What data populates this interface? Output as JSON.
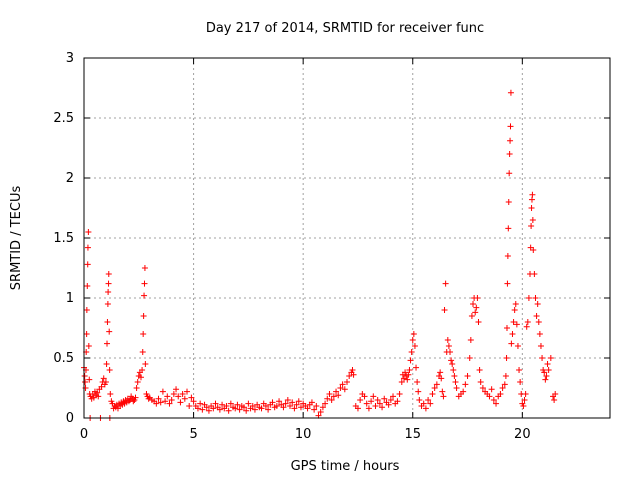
{
  "chart_data": {
    "type": "scatter",
    "title": "Day 217 of 2014, SRMTID for receiver func",
    "xlabel": "GPS time / hours",
    "ylabel": "SRMTID / TECUs",
    "xlim": [
      0,
      24
    ],
    "ylim": [
      0,
      3
    ],
    "xticks": [
      0,
      5,
      10,
      15,
      20
    ],
    "yticks": [
      0,
      0.5,
      1,
      1.5,
      2,
      2.5,
      3
    ],
    "xtick_labels": [
      "0",
      "5",
      "10",
      "15",
      "20"
    ],
    "ytick_labels": [
      "0",
      "0.5",
      "1",
      "1.5",
      "2",
      "2.5",
      "3"
    ],
    "grid": true,
    "marker": "+",
    "color": "#ff0000",
    "series": [
      {
        "name": "SRMTID",
        "points": [
          [
            0.0,
            0.42
          ],
          [
            0.03,
            0.35
          ],
          [
            0.05,
            0.3
          ],
          [
            0.07,
            0.25
          ],
          [
            0.09,
            0.4
          ],
          [
            0.1,
            0.55
          ],
          [
            0.12,
            0.7
          ],
          [
            0.13,
            0.9
          ],
          [
            0.15,
            1.1
          ],
          [
            0.17,
            1.28
          ],
          [
            0.18,
            1.42
          ],
          [
            0.2,
            1.55
          ],
          [
            0.22,
            0.6
          ],
          [
            0.24,
            0.32
          ],
          [
            0.26,
            0.2
          ],
          [
            0.28,
            0.0
          ],
          [
            0.3,
            0.18
          ],
          [
            0.35,
            0.16
          ],
          [
            0.4,
            0.2
          ],
          [
            0.45,
            0.17
          ],
          [
            0.5,
            0.22
          ],
          [
            0.55,
            0.19
          ],
          [
            0.6,
            0.21
          ],
          [
            0.65,
            0.18
          ],
          [
            0.7,
            0.24
          ],
          [
            0.75,
            0.0
          ],
          [
            0.8,
            0.26
          ],
          [
            0.85,
            0.3
          ],
          [
            0.9,
            0.33
          ],
          [
            0.95,
            0.28
          ],
          [
            1.0,
            0.3
          ],
          [
            1.03,
            0.45
          ],
          [
            1.05,
            0.62
          ],
          [
            1.07,
            0.8
          ],
          [
            1.09,
            0.95
          ],
          [
            1.1,
            1.05
          ],
          [
            1.12,
            1.12
          ],
          [
            1.13,
            1.2
          ],
          [
            1.15,
            0.72
          ],
          [
            1.17,
            0.4
          ],
          [
            1.18,
            0.0
          ],
          [
            1.2,
            0.2
          ],
          [
            1.25,
            0.14
          ],
          [
            1.3,
            0.12
          ],
          [
            1.35,
            0.08
          ],
          [
            1.4,
            0.1
          ],
          [
            1.45,
            0.09
          ],
          [
            1.5,
            0.11
          ],
          [
            1.55,
            0.08
          ],
          [
            1.6,
            0.12
          ],
          [
            1.65,
            0.1
          ],
          [
            1.7,
            0.13
          ],
          [
            1.75,
            0.11
          ],
          [
            1.8,
            0.14
          ],
          [
            1.85,
            0.12
          ],
          [
            1.9,
            0.15
          ],
          [
            1.95,
            0.13
          ],
          [
            2.0,
            0.16
          ],
          [
            2.05,
            0.14
          ],
          [
            2.1,
            0.15
          ],
          [
            2.15,
            0.18
          ],
          [
            2.2,
            0.16
          ],
          [
            2.25,
            0.14
          ],
          [
            2.3,
            0.15
          ],
          [
            2.35,
            0.17
          ],
          [
            2.4,
            0.25
          ],
          [
            2.45,
            0.3
          ],
          [
            2.5,
            0.35
          ],
          [
            2.55,
            0.38
          ],
          [
            2.6,
            0.34
          ],
          [
            2.65,
            0.4
          ],
          [
            2.68,
            0.55
          ],
          [
            2.7,
            0.7
          ],
          [
            2.72,
            0.85
          ],
          [
            2.74,
            1.02
          ],
          [
            2.76,
            1.12
          ],
          [
            2.78,
            1.25
          ],
          [
            2.8,
            0.45
          ],
          [
            2.85,
            0.2
          ],
          [
            2.9,
            0.18
          ],
          [
            2.95,
            0.16
          ],
          [
            3.0,
            0.17
          ],
          [
            3.1,
            0.15
          ],
          [
            3.2,
            0.14
          ],
          [
            3.3,
            0.12
          ],
          [
            3.4,
            0.16
          ],
          [
            3.5,
            0.13
          ],
          [
            3.6,
            0.22
          ],
          [
            3.7,
            0.14
          ],
          [
            3.8,
            0.18
          ],
          [
            3.9,
            0.12
          ],
          [
            4.0,
            0.15
          ],
          [
            4.1,
            0.2
          ],
          [
            4.2,
            0.24
          ],
          [
            4.3,
            0.18
          ],
          [
            4.4,
            0.13
          ],
          [
            4.5,
            0.2
          ],
          [
            4.6,
            0.16
          ],
          [
            4.7,
            0.22
          ],
          [
            4.8,
            0.1
          ],
          [
            4.9,
            0.17
          ],
          [
            5.0,
            0.14
          ],
          [
            5.1,
            0.1
          ],
          [
            5.2,
            0.08
          ],
          [
            5.3,
            0.12
          ],
          [
            5.4,
            0.07
          ],
          [
            5.5,
            0.11
          ],
          [
            5.6,
            0.09
          ],
          [
            5.7,
            0.06
          ],
          [
            5.8,
            0.1
          ],
          [
            5.9,
            0.08
          ],
          [
            6.0,
            0.12
          ],
          [
            6.1,
            0.09
          ],
          [
            6.2,
            0.07
          ],
          [
            6.3,
            0.11
          ],
          [
            6.4,
            0.08
          ],
          [
            6.5,
            0.1
          ],
          [
            6.6,
            0.06
          ],
          [
            6.7,
            0.12
          ],
          [
            6.8,
            0.09
          ],
          [
            6.9,
            0.08
          ],
          [
            7.0,
            0.11
          ],
          [
            7.1,
            0.07
          ],
          [
            7.2,
            0.1
          ],
          [
            7.3,
            0.09
          ],
          [
            7.4,
            0.06
          ],
          [
            7.5,
            0.12
          ],
          [
            7.6,
            0.08
          ],
          [
            7.7,
            0.1
          ],
          [
            7.8,
            0.07
          ],
          [
            7.9,
            0.11
          ],
          [
            8.0,
            0.09
          ],
          [
            8.1,
            0.08
          ],
          [
            8.2,
            0.12
          ],
          [
            8.3,
            0.1
          ],
          [
            8.4,
            0.07
          ],
          [
            8.5,
            0.11
          ],
          [
            8.6,
            0.13
          ],
          [
            8.7,
            0.09
          ],
          [
            8.8,
            0.1
          ],
          [
            8.9,
            0.14
          ],
          [
            9.0,
            0.11
          ],
          [
            9.1,
            0.09
          ],
          [
            9.2,
            0.12
          ],
          [
            9.3,
            0.15
          ],
          [
            9.4,
            0.1
          ],
          [
            9.5,
            0.13
          ],
          [
            9.6,
            0.08
          ],
          [
            9.7,
            0.11
          ],
          [
            9.8,
            0.14
          ],
          [
            9.9,
            0.09
          ],
          [
            10.0,
            0.12
          ],
          [
            10.1,
            0.1
          ],
          [
            10.2,
            0.08
          ],
          [
            10.3,
            0.11
          ],
          [
            10.4,
            0.13
          ],
          [
            10.5,
            0.07
          ],
          [
            10.6,
            0.1
          ],
          [
            10.7,
            0.02
          ],
          [
            10.8,
            0.05
          ],
          [
            10.9,
            0.09
          ],
          [
            11.0,
            0.12
          ],
          [
            11.1,
            0.16
          ],
          [
            11.2,
            0.2
          ],
          [
            11.3,
            0.15
          ],
          [
            11.4,
            0.18
          ],
          [
            11.5,
            0.22
          ],
          [
            11.6,
            0.19
          ],
          [
            11.7,
            0.25
          ],
          [
            11.8,
            0.28
          ],
          [
            11.9,
            0.24
          ],
          [
            12.0,
            0.3
          ],
          [
            12.1,
            0.35
          ],
          [
            12.2,
            0.38
          ],
          [
            12.25,
            0.4
          ],
          [
            12.3,
            0.36
          ],
          [
            12.4,
            0.1
          ],
          [
            12.5,
            0.08
          ],
          [
            12.6,
            0.15
          ],
          [
            12.7,
            0.2
          ],
          [
            12.8,
            0.18
          ],
          [
            12.9,
            0.12
          ],
          [
            13.0,
            0.08
          ],
          [
            13.1,
            0.14
          ],
          [
            13.2,
            0.18
          ],
          [
            13.3,
            0.1
          ],
          [
            13.4,
            0.15
          ],
          [
            13.5,
            0.12
          ],
          [
            13.6,
            0.09
          ],
          [
            13.7,
            0.16
          ],
          [
            13.8,
            0.13
          ],
          [
            13.9,
            0.11
          ],
          [
            14.0,
            0.15
          ],
          [
            14.1,
            0.18
          ],
          [
            14.2,
            0.12
          ],
          [
            14.3,
            0.14
          ],
          [
            14.4,
            0.2
          ],
          [
            14.5,
            0.3
          ],
          [
            14.55,
            0.36
          ],
          [
            14.6,
            0.33
          ],
          [
            14.65,
            0.38
          ],
          [
            14.7,
            0.35
          ],
          [
            14.75,
            0.32
          ],
          [
            14.8,
            0.36
          ],
          [
            14.85,
            0.4
          ],
          [
            14.9,
            0.48
          ],
          [
            14.95,
            0.55
          ],
          [
            15.0,
            0.65
          ],
          [
            15.05,
            0.7
          ],
          [
            15.1,
            0.6
          ],
          [
            15.15,
            0.42
          ],
          [
            15.2,
            0.3
          ],
          [
            15.25,
            0.22
          ],
          [
            15.3,
            0.15
          ],
          [
            15.4,
            0.1
          ],
          [
            15.5,
            0.12
          ],
          [
            15.6,
            0.08
          ],
          [
            15.7,
            0.15
          ],
          [
            15.8,
            0.12
          ],
          [
            15.9,
            0.2
          ],
          [
            16.0,
            0.25
          ],
          [
            16.1,
            0.28
          ],
          [
            16.2,
            0.35
          ],
          [
            16.25,
            0.38
          ],
          [
            16.3,
            0.33
          ],
          [
            16.35,
            0.22
          ],
          [
            16.4,
            0.18
          ],
          [
            16.45,
            0.9
          ],
          [
            16.5,
            1.12
          ],
          [
            16.55,
            0.55
          ],
          [
            16.6,
            0.65
          ],
          [
            16.65,
            0.6
          ],
          [
            16.7,
            0.55
          ],
          [
            16.75,
            0.48
          ],
          [
            16.8,
            0.45
          ],
          [
            16.85,
            0.4
          ],
          [
            16.9,
            0.35
          ],
          [
            16.95,
            0.3
          ],
          [
            17.0,
            0.25
          ],
          [
            17.1,
            0.18
          ],
          [
            17.2,
            0.2
          ],
          [
            17.3,
            0.22
          ],
          [
            17.4,
            0.28
          ],
          [
            17.5,
            0.35
          ],
          [
            17.6,
            0.5
          ],
          [
            17.65,
            0.65
          ],
          [
            17.7,
            0.85
          ],
          [
            17.75,
            0.95
          ],
          [
            17.8,
            1.0
          ],
          [
            17.85,
            0.88
          ],
          [
            17.9,
            0.92
          ],
          [
            17.95,
            1.0
          ],
          [
            18.0,
            0.8
          ],
          [
            18.05,
            0.4
          ],
          [
            18.1,
            0.3
          ],
          [
            18.2,
            0.25
          ],
          [
            18.3,
            0.22
          ],
          [
            18.4,
            0.2
          ],
          [
            18.5,
            0.18
          ],
          [
            18.6,
            0.24
          ],
          [
            18.7,
            0.15
          ],
          [
            18.8,
            0.12
          ],
          [
            18.9,
            0.18
          ],
          [
            19.0,
            0.2
          ],
          [
            19.1,
            0.25
          ],
          [
            19.2,
            0.28
          ],
          [
            19.25,
            0.35
          ],
          [
            19.28,
            0.5
          ],
          [
            19.3,
            0.75
          ],
          [
            19.32,
            1.12
          ],
          [
            19.34,
            1.35
          ],
          [
            19.36,
            1.58
          ],
          [
            19.38,
            1.8
          ],
          [
            19.4,
            2.04
          ],
          [
            19.42,
            2.2
          ],
          [
            19.44,
            2.31
          ],
          [
            19.46,
            2.43
          ],
          [
            19.48,
            2.71
          ],
          [
            19.5,
            0.62
          ],
          [
            19.55,
            0.7
          ],
          [
            19.6,
            0.8
          ],
          [
            19.65,
            0.9
          ],
          [
            19.7,
            0.95
          ],
          [
            19.75,
            0.78
          ],
          [
            19.8,
            0.6
          ],
          [
            19.85,
            0.4
          ],
          [
            19.9,
            0.3
          ],
          [
            19.95,
            0.2
          ],
          [
            20.0,
            0.12
          ],
          [
            20.05,
            0.1
          ],
          [
            20.1,
            0.15
          ],
          [
            20.15,
            0.2
          ],
          [
            20.2,
            0.76
          ],
          [
            20.25,
            0.8
          ],
          [
            20.3,
            1.0
          ],
          [
            20.35,
            1.2
          ],
          [
            20.38,
            1.42
          ],
          [
            20.4,
            1.6
          ],
          [
            20.42,
            1.75
          ],
          [
            20.44,
            1.82
          ],
          [
            20.46,
            1.86
          ],
          [
            20.48,
            1.65
          ],
          [
            20.5,
            1.4
          ],
          [
            20.55,
            1.2
          ],
          [
            20.6,
            1.0
          ],
          [
            20.65,
            0.85
          ],
          [
            20.7,
            0.95
          ],
          [
            20.75,
            0.8
          ],
          [
            20.8,
            0.7
          ],
          [
            20.85,
            0.6
          ],
          [
            20.9,
            0.5
          ],
          [
            20.95,
            0.4
          ],
          [
            21.0,
            0.38
          ],
          [
            21.05,
            0.32
          ],
          [
            21.1,
            0.35
          ],
          [
            21.15,
            0.45
          ],
          [
            21.2,
            0.4
          ],
          [
            21.3,
            0.5
          ],
          [
            21.4,
            0.18
          ],
          [
            21.45,
            0.15
          ],
          [
            21.5,
            0.2
          ]
        ]
      }
    ]
  }
}
